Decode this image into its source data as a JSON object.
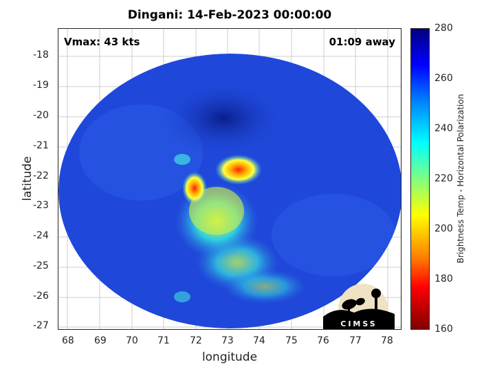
{
  "title": "Dingani: 14-Feb-2023 00:00:00",
  "overlay": {
    "vmax": "Vmax: 43 kts",
    "time_away": "01:09 away"
  },
  "axes": {
    "xlabel": "longitude",
    "ylabel": "latitude",
    "xticks": [
      "68",
      "69",
      "70",
      "71",
      "72",
      "73",
      "74",
      "75",
      "76",
      "77",
      "78"
    ],
    "yticks": [
      "-18",
      "-19",
      "-20",
      "-21",
      "-22",
      "-23",
      "-24",
      "-25",
      "-26",
      "-27"
    ]
  },
  "colorbar": {
    "label": "Brightness Temp - Horizontal Polarization",
    "ticks": [
      "280",
      "260",
      "240",
      "220",
      "200",
      "180",
      "160"
    ]
  },
  "logo": {
    "text": "CIMSS"
  },
  "colors": {
    "background_scene": "#1e46d8",
    "cold_core": "#0a1a8c",
    "warm_band": "#28c8e6",
    "hot_spot": "#ff3a1a"
  }
}
